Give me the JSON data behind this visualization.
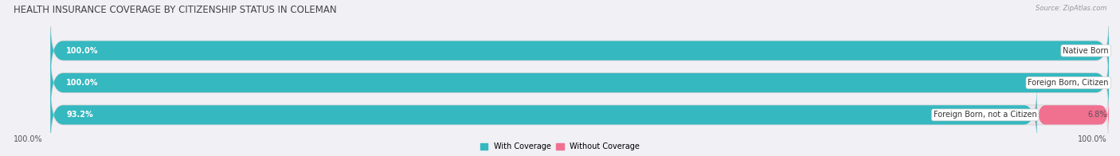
{
  "title": "HEALTH INSURANCE COVERAGE BY CITIZENSHIP STATUS IN COLEMAN",
  "source": "Source: ZipAtlas.com",
  "categories": [
    "Native Born",
    "Foreign Born, Citizen",
    "Foreign Born, not a Citizen"
  ],
  "with_coverage": [
    100.0,
    100.0,
    93.2
  ],
  "without_coverage": [
    0.0,
    0.0,
    6.8
  ],
  "color_with": "#35B8C0",
  "color_without": "#F07090",
  "color_with_light": "#A8DEE0",
  "color_bg_track": "#E8E8EC",
  "bg_color": "#F0F0F5",
  "title_fontsize": 8.5,
  "label_fontsize": 7.0,
  "value_fontsize": 7.0,
  "tick_fontsize": 7.0,
  "figsize": [
    14.06,
    1.96
  ],
  "dpi": 100,
  "legend_label_with": "With Coverage",
  "legend_label_without": "Without Coverage",
  "x_left_label": "100.0%",
  "x_right_label": "100.0%"
}
